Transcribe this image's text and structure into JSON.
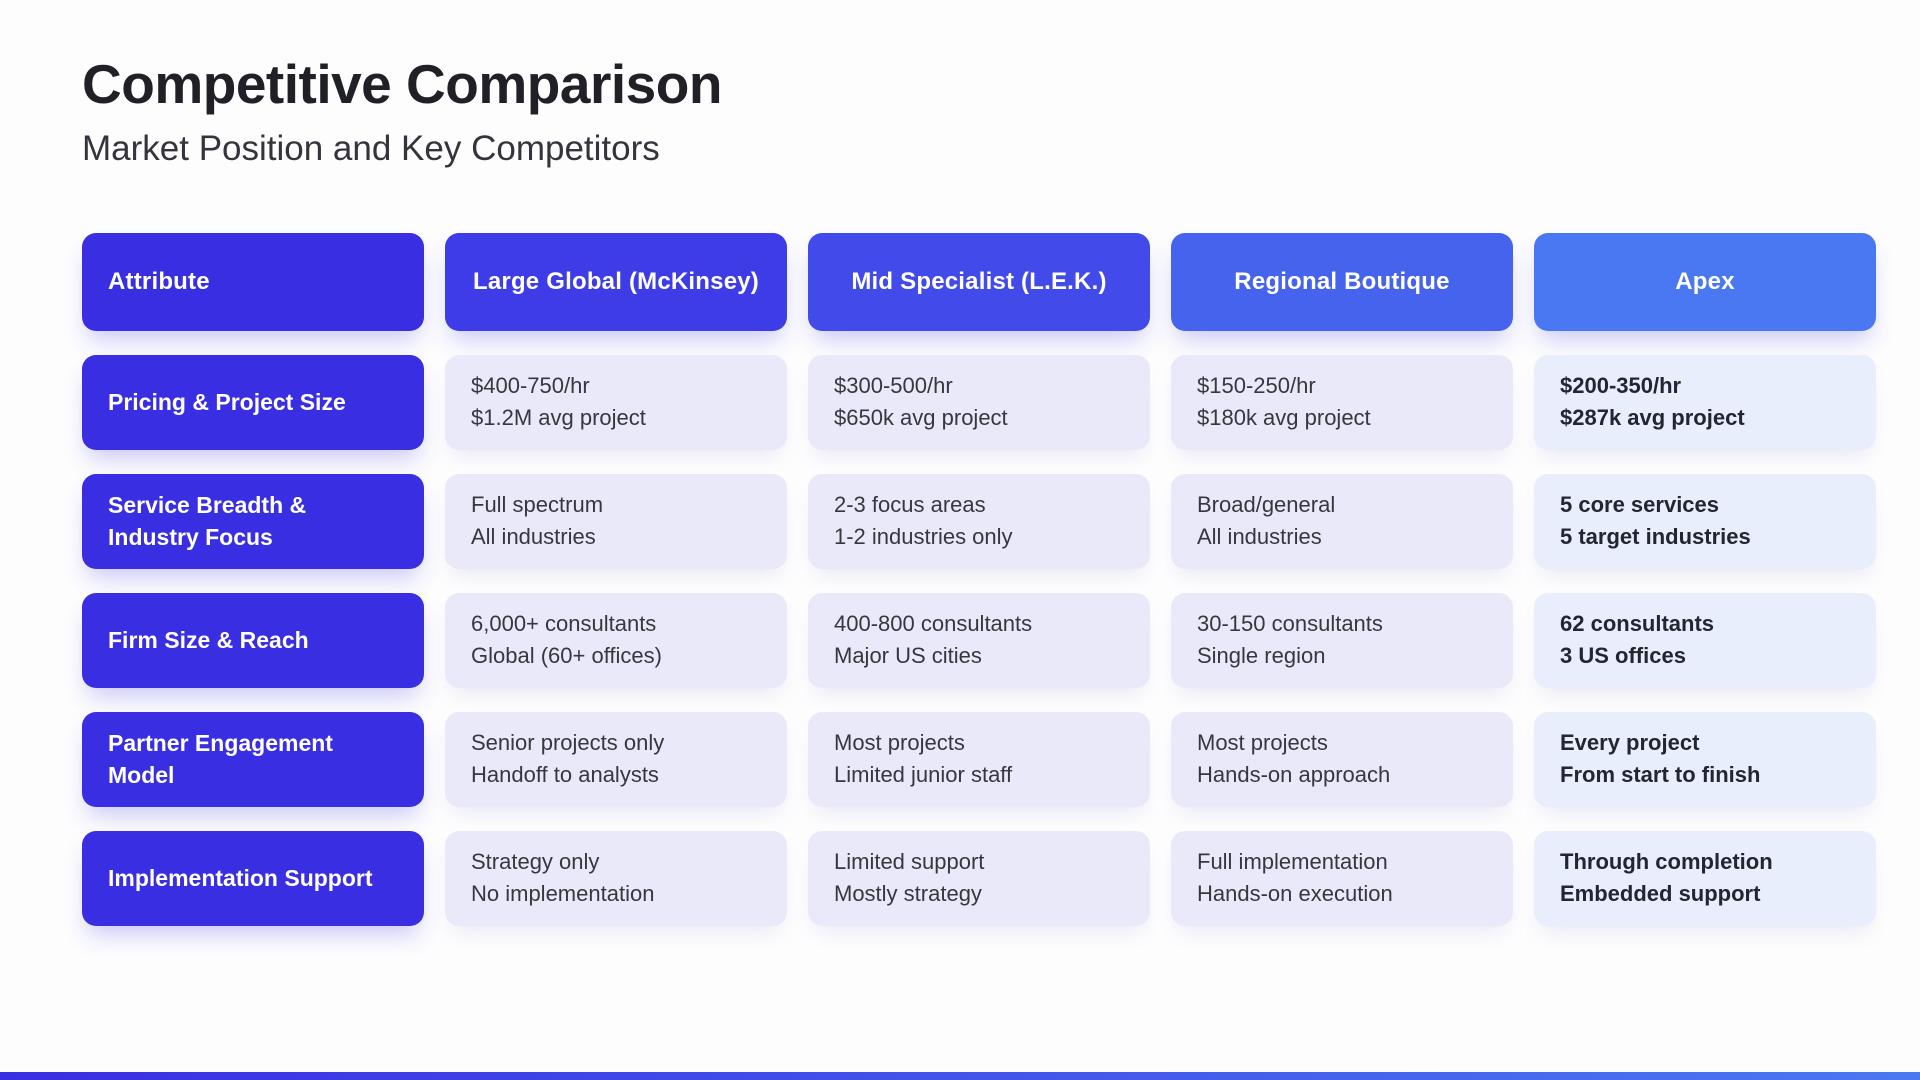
{
  "header": {
    "title": "Competitive Comparison",
    "subtitle": "Market Position and Key Competitors"
  },
  "table": {
    "columns": [
      {
        "label": "Attribute",
        "bg": "#3a2ee2"
      },
      {
        "label": "Large Global (McKinsey)",
        "bg": "#3e3ce6"
      },
      {
        "label": "Mid Specialist (L.E.K.)",
        "bg": "#424aea"
      },
      {
        "label": "Regional Boutique",
        "bg": "#4663ee"
      },
      {
        "label": "Apex",
        "bg": "#4a78f2"
      }
    ],
    "rows": [
      {
        "attribute": "Pricing & Project Size",
        "cells": [
          {
            "line1": "$400-750/hr",
            "line2": "$1.2M avg project"
          },
          {
            "line1": "$300-500/hr",
            "line2": "$650k avg project"
          },
          {
            "line1": "$150-250/hr",
            "line2": "$180k avg project"
          },
          {
            "line1": "$200-350/hr",
            "line2": "$287k avg project"
          }
        ]
      },
      {
        "attribute": "Service Breadth & Industry Focus",
        "cells": [
          {
            "line1": "Full spectrum",
            "line2": "All industries"
          },
          {
            "line1": "2-3 focus areas",
            "line2": "1-2 industries only"
          },
          {
            "line1": "Broad/general",
            "line2": "All industries"
          },
          {
            "line1": "5 core services",
            "line2": "5 target industries"
          }
        ]
      },
      {
        "attribute": "Firm Size & Reach",
        "cells": [
          {
            "line1": "6,000+ consultants",
            "line2": "Global (60+ offices)"
          },
          {
            "line1": "400-800 consultants",
            "line2": "Major US cities"
          },
          {
            "line1": "30-150 consultants",
            "line2": "Single region"
          },
          {
            "line1": "62 consultants",
            "line2": "3 US offices"
          }
        ]
      },
      {
        "attribute": "Partner Engagement Model",
        "cells": [
          {
            "line1": "Senior projects only",
            "line2": "Handoff to analysts"
          },
          {
            "line1": "Most projects",
            "line2": "Limited junior staff"
          },
          {
            "line1": "Most projects",
            "line2": "Hands-on approach"
          },
          {
            "line1": "Every project",
            "line2": "From start to finish"
          }
        ]
      },
      {
        "attribute": "Implementation Support",
        "cells": [
          {
            "line1": "Strategy only",
            "line2": "No implementation"
          },
          {
            "line1": "Limited support",
            "line2": "Mostly strategy"
          },
          {
            "line1": "Full implementation",
            "line2": "Hands-on execution"
          },
          {
            "line1": "Through completion",
            "line2": "Embedded support"
          }
        ]
      }
    ]
  },
  "colors": {
    "title_text": "#202027",
    "subtitle_text": "#34343c",
    "row_label_bg": "#3a2ee2",
    "cell_bg": "#eae9fa",
    "cell_text": "#37373f",
    "apex_cell_bg": "#e8eefc",
    "apex_cell_text": "#222630",
    "accent_gradient_start": "#3a2ee2",
    "accent_gradient_end": "#4a78f2"
  }
}
